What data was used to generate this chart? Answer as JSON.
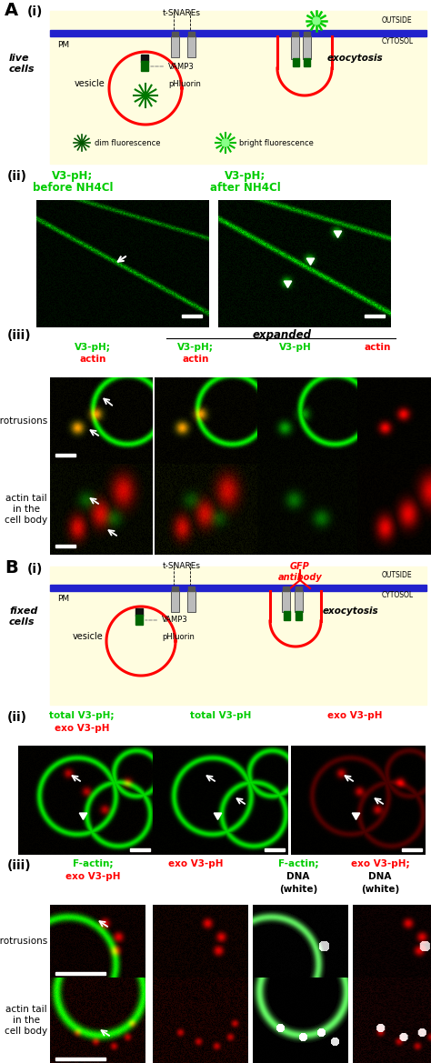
{
  "fig_width": 4.74,
  "fig_height": 11.69,
  "dpi": 100,
  "bg_color": "#ffffff",
  "diagram_bg": "#fffde0",
  "pm_color": "#2222cc",
  "green": "#00cc00",
  "red": "#ff0000",
  "dark_green": "#006600",
  "panel_labels": [
    "A",
    "B"
  ],
  "sub_labels": [
    "(i)",
    "(ii)",
    "(iii)"
  ]
}
